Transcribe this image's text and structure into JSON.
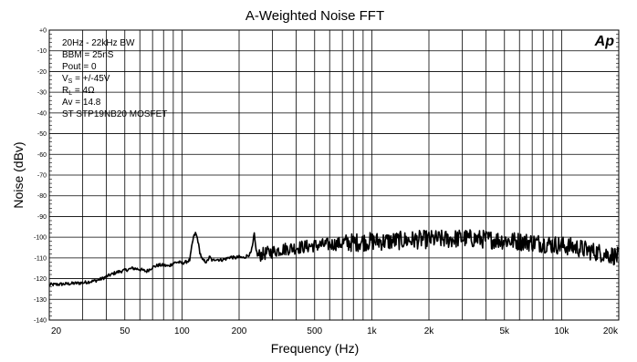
{
  "chart_data": {
    "type": "line",
    "title": "A-Weighted Noise FFT",
    "xlabel": "Frequency (Hz)",
    "ylabel": "Noise (dBv)",
    "xscale": "log",
    "xlim": [
      20,
      20000
    ],
    "ylim": [
      -140,
      0
    ],
    "grid": true,
    "x_ticks": [
      {
        "value": 20,
        "label": "20"
      },
      {
        "value": 50,
        "label": "50"
      },
      {
        "value": 100,
        "label": "100"
      },
      {
        "value": 200,
        "label": "200"
      },
      {
        "value": 500,
        "label": "500"
      },
      {
        "value": 1000,
        "label": "1k"
      },
      {
        "value": 2000,
        "label": "2k"
      },
      {
        "value": 5000,
        "label": "5k"
      },
      {
        "value": 10000,
        "label": "10k"
      },
      {
        "value": 20000,
        "label": "20k"
      }
    ],
    "y_ticks": [
      {
        "value": 0,
        "label": "+0"
      },
      {
        "value": -10,
        "label": "-10"
      },
      {
        "value": -20,
        "label": "-20"
      },
      {
        "value": -30,
        "label": "-30"
      },
      {
        "value": -40,
        "label": "-40"
      },
      {
        "value": -50,
        "label": "-50"
      },
      {
        "value": -60,
        "label": "-60"
      },
      {
        "value": -70,
        "label": "-70"
      },
      {
        "value": -80,
        "label": "-80"
      },
      {
        "value": -90,
        "label": "-90"
      },
      {
        "value": -100,
        "label": "-100"
      },
      {
        "value": -110,
        "label": "-110"
      },
      {
        "value": -120,
        "label": "-120"
      },
      {
        "value": -130,
        "label": "-130"
      },
      {
        "value": -140,
        "label": "-140"
      }
    ],
    "legend_placement": "top-left",
    "annotations": {
      "bw": "20Hz - 22kHz BW",
      "bbm": "BBM = 25nS",
      "pout": "Pout = 0",
      "vs_main": "V",
      "vs_sub": "S",
      "vs_rest": " = +/-45V",
      "rl_main": "R",
      "rl_sub": "L",
      "rl_rest": " = 4Ω",
      "av": "Av = 14.8",
      "device": "ST STP19NB20 MOSFET"
    },
    "logo": "Ap",
    "series": [
      {
        "color": "#000000",
        "points": [
          [
            20,
            -123
          ],
          [
            25,
            -122.5
          ],
          [
            30,
            -122
          ],
          [
            35,
            -121
          ],
          [
            38,
            -120
          ],
          [
            40,
            -119
          ],
          [
            45,
            -117
          ],
          [
            50,
            -116
          ],
          [
            55,
            -115
          ],
          [
            60,
            -115.5
          ],
          [
            65,
            -116.5
          ],
          [
            70,
            -114.5
          ],
          [
            75,
            -113.5
          ],
          [
            80,
            -113.5
          ],
          [
            85,
            -114
          ],
          [
            90,
            -112.5
          ],
          [
            95,
            -112
          ],
          [
            100,
            -112.5
          ],
          [
            105,
            -112
          ],
          [
            110,
            -111
          ],
          [
            112,
            -106
          ],
          [
            115,
            -100
          ],
          [
            118,
            -98
          ],
          [
            121,
            -101
          ],
          [
            124,
            -107
          ],
          [
            128,
            -111
          ],
          [
            135,
            -112
          ],
          [
            140,
            -109.5
          ],
          [
            145,
            -111.5
          ],
          [
            150,
            -110.5
          ],
          [
            160,
            -111
          ],
          [
            170,
            -110.5
          ],
          [
            180,
            -109.5
          ],
          [
            190,
            -110
          ],
          [
            200,
            -109.5
          ],
          [
            210,
            -110
          ],
          [
            220,
            -109
          ],
          [
            230,
            -108
          ],
          [
            236,
            -104
          ],
          [
            240,
            -98
          ],
          [
            244,
            -104
          ],
          [
            250,
            -109
          ],
          [
            270,
            -108
          ],
          [
            300,
            -107
          ],
          [
            330,
            -106
          ],
          [
            360,
            -105.5
          ],
          [
            400,
            -105
          ],
          [
            450,
            -104.5
          ],
          [
            500,
            -104
          ],
          [
            600,
            -103.5
          ],
          [
            700,
            -103
          ],
          [
            800,
            -102.5
          ],
          [
            1000,
            -102
          ],
          [
            1200,
            -102
          ],
          [
            1500,
            -101.5
          ],
          [
            2000,
            -101
          ],
          [
            2500,
            -101
          ],
          [
            3000,
            -100.5
          ],
          [
            4000,
            -101
          ],
          [
            5000,
            -101.5
          ],
          [
            6000,
            -102
          ],
          [
            7000,
            -102.5
          ],
          [
            8000,
            -103
          ],
          [
            10000,
            -104
          ],
          [
            12000,
            -105
          ],
          [
            14000,
            -106.5
          ],
          [
            16000,
            -107.5
          ],
          [
            18000,
            -108.5
          ],
          [
            20000,
            -109.5
          ]
        ]
      }
    ]
  }
}
